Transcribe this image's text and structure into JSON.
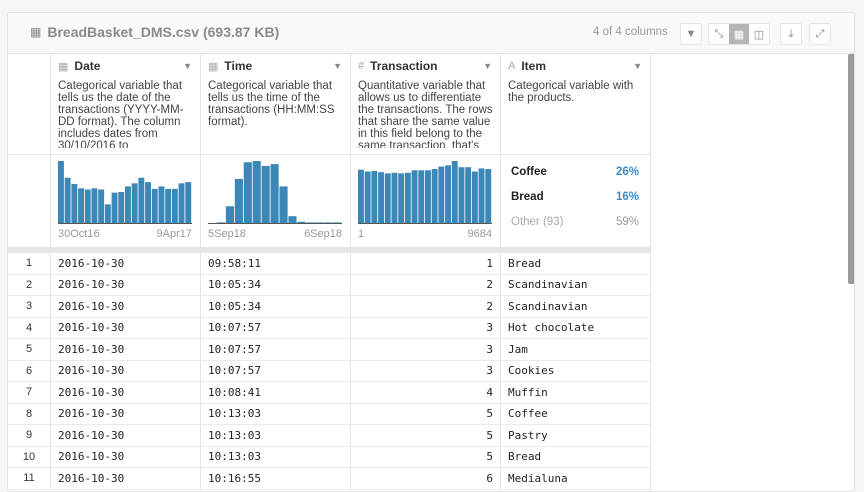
{
  "header": {
    "title": "BreadBasket_DMS.csv (693.87 KB)",
    "columns_count": "4 of 4 columns"
  },
  "columns": [
    {
      "name": "Date",
      "type_icon": "calendar-icon",
      "description": "Categorical variable that tells us the date of the transactions (YYYY-MM-DD format). The column includes dates from 30/10/2016 to",
      "axis_min": "30Oct16",
      "axis_max": "9Apr17",
      "histogram": [
        1.0,
        0.73,
        0.63,
        0.56,
        0.54,
        0.56,
        0.54,
        0.3,
        0.49,
        0.5,
        0.59,
        0.64,
        0.73,
        0.66,
        0.55,
        0.59,
        0.55,
        0.55,
        0.64,
        0.66
      ]
    },
    {
      "name": "Time",
      "type_icon": "calendar-icon",
      "description": "Categorical variable that tells us the time of the transactions (HH:MM:SS format).",
      "axis_min": "5Sep18",
      "axis_max": "6Sep18",
      "histogram": [
        0,
        0.01,
        0.27,
        0.71,
        0.98,
        1.0,
        0.92,
        0.95,
        0.59,
        0.11,
        0.02,
        0.01,
        0.01,
        0.01,
        0.01
      ]
    },
    {
      "name": "Transaction",
      "type_icon": "hash-icon",
      "description": "Quantitative variable that allows us to differentiate the transactions. The rows that share the same value in this field belong to the same transaction, that's",
      "axis_min": "1",
      "axis_max": "9684",
      "histogram": [
        0.86,
        0.83,
        0.84,
        0.82,
        0.8,
        0.81,
        0.8,
        0.81,
        0.85,
        0.85,
        0.85,
        0.87,
        0.91,
        0.93,
        1.0,
        0.9,
        0.9,
        0.83,
        0.88,
        0.87
      ]
    },
    {
      "name": "Item",
      "type_icon": "text-icon",
      "description": "Categorical variable with the products.",
      "top_values": [
        {
          "label": "Coffee",
          "pct": "26%"
        },
        {
          "label": "Bread",
          "pct": "16%"
        },
        {
          "label": "Other (93)",
          "pct": "59%"
        }
      ]
    }
  ],
  "rows": [
    [
      "1",
      "2016-10-30",
      "09:58:11",
      "1",
      "Bread"
    ],
    [
      "2",
      "2016-10-30",
      "10:05:34",
      "2",
      "Scandinavian"
    ],
    [
      "3",
      "2016-10-30",
      "10:05:34",
      "2",
      "Scandinavian"
    ],
    [
      "4",
      "2016-10-30",
      "10:07:57",
      "3",
      "Hot chocolate"
    ],
    [
      "5",
      "2016-10-30",
      "10:07:57",
      "3",
      "Jam"
    ],
    [
      "6",
      "2016-10-30",
      "10:07:57",
      "3",
      "Cookies"
    ],
    [
      "7",
      "2016-10-30",
      "10:08:41",
      "4",
      "Muffin"
    ],
    [
      "8",
      "2016-10-30",
      "10:13:03",
      "5",
      "Coffee"
    ],
    [
      "9",
      "2016-10-30",
      "10:13:03",
      "5",
      "Pastry"
    ],
    [
      "10",
      "2016-10-30",
      "10:13:03",
      "5",
      "Bread"
    ],
    [
      "11",
      "2016-10-30",
      "10:16:55",
      "6",
      "Medialuna"
    ]
  ],
  "colors": {
    "bar": "#3b88b8",
    "accent": "#3b8ac4"
  }
}
